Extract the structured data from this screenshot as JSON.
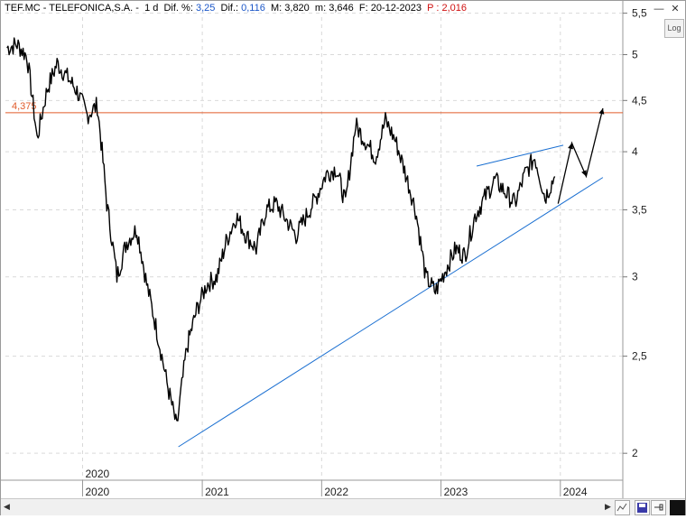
{
  "header": {
    "symbol": "TEF.MC - TELEFONICA,S.A. -",
    "timeframe": "1 d",
    "dif_pct_label": "Dif. %:",
    "dif_pct_value": "3,25",
    "dif_label": "Dif.:",
    "dif_value": "0,116",
    "max_label": "M:",
    "max_value": "3,820",
    "min_label": "m:",
    "min_value": "3,646",
    "date_label": "F:",
    "date_value": "20-12-2023",
    "price_label": "P :",
    "price_value": "2,016",
    "colors": {
      "accent": "#1a56c8",
      "price": "#d01010"
    }
  },
  "controls": {
    "minimize": "—",
    "close": "✕",
    "log_button": "Log",
    "scroll_left": "◀",
    "scroll_right": "▶"
  },
  "chart_data": {
    "type": "line",
    "scale": "log",
    "ylim": [
      1.88,
      5.45
    ],
    "grid": true,
    "y_ticks": [
      2,
      2.5,
      3,
      3.5,
      4,
      4.5,
      5,
      5.5
    ],
    "y_tick_labels": [
      "2",
      "2,5",
      "3",
      "3,5",
      "4",
      "4,5",
      "5",
      "5,5"
    ],
    "x_tick_labels": [
      "2020",
      "2021",
      "2022",
      "2023",
      "2024"
    ],
    "x_period_label": "2020",
    "hline": {
      "value": 4.375,
      "label": "4,375",
      "color": "#e05a2a"
    },
    "series": [
      {
        "color": "#000000",
        "x": [
          "2019-05",
          "2019-06",
          "2019-07",
          "2019-08",
          "2019-09",
          "2019-10",
          "2019-11",
          "2019-12",
          "2020-01",
          "2020-02",
          "2020-03",
          "2020-04",
          "2020-05",
          "2020-06",
          "2020-07",
          "2020-08",
          "2020-09",
          "2020-10",
          "2020-11",
          "2020-12",
          "2021-01",
          "2021-02",
          "2021-03",
          "2021-04",
          "2021-05",
          "2021-06",
          "2021-07",
          "2021-08",
          "2021-09",
          "2021-10",
          "2021-11",
          "2021-12",
          "2022-01",
          "2022-02",
          "2022-03",
          "2022-04",
          "2022-05",
          "2022-06",
          "2022-07",
          "2022-08",
          "2022-09",
          "2022-10",
          "2022-11",
          "2022-12",
          "2023-01",
          "2023-02",
          "2023-03",
          "2023-04",
          "2023-05",
          "2023-06",
          "2023-07",
          "2023-08",
          "2023-09",
          "2023-10",
          "2023-11",
          "2023-12"
        ],
        "values": [
          5.08,
          5.12,
          4.98,
          4.12,
          4.62,
          4.9,
          4.75,
          4.6,
          4.35,
          4.45,
          3.55,
          3.0,
          3.25,
          3.35,
          2.95,
          2.65,
          2.35,
          2.12,
          2.55,
          2.78,
          2.95,
          3.0,
          3.25,
          3.45,
          3.3,
          3.2,
          3.5,
          3.55,
          3.42,
          3.3,
          3.45,
          3.6,
          3.8,
          3.85,
          3.55,
          4.25,
          4.1,
          3.95,
          4.3,
          4.1,
          3.8,
          3.5,
          3.0,
          2.9,
          3.05,
          3.2,
          3.15,
          3.45,
          3.6,
          3.75,
          3.65,
          3.55,
          3.8,
          3.95,
          3.6,
          3.78
        ]
      }
    ],
    "trendlines": [
      {
        "from": [
          "2020-10-20",
          2.03
        ],
        "to": [
          "2024-05-10",
          3.77
        ],
        "color": "#1a6fd1"
      },
      {
        "from": [
          "2023-04-20",
          3.87
        ],
        "to": [
          "2024-01-10",
          4.06
        ],
        "color": "#1a6fd1"
      }
    ],
    "projection_arrow": {
      "x": [
        "2023-12-25",
        "2024-02-05",
        "2024-03-20",
        "2024-05-10"
      ],
      "values": [
        3.55,
        4.08,
        3.78,
        4.42
      ],
      "color": "#000000"
    }
  }
}
